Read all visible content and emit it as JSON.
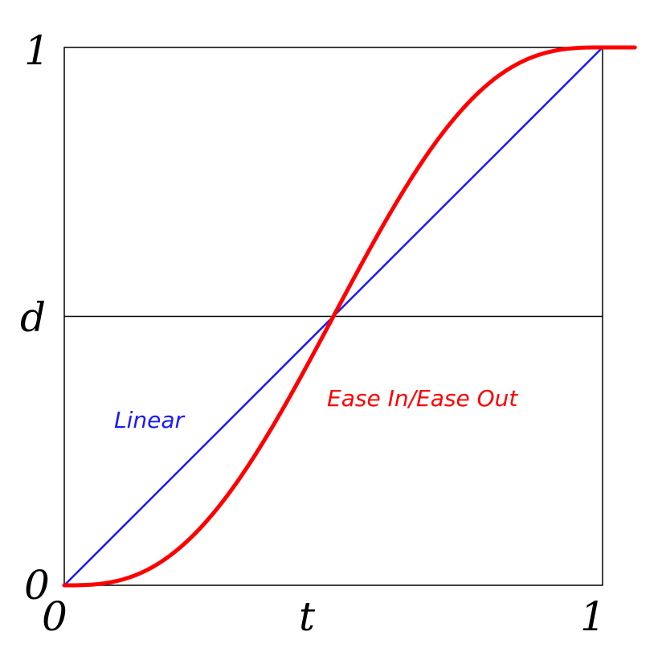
{
  "labels": {
    "y_top": "1",
    "y_mid": "d",
    "y_bottom": "0",
    "x_left": "0",
    "x_mid": "t",
    "x_right": "1",
    "linear": "Linear",
    "ease": "Ease In/Ease Out"
  },
  "colors": {
    "frame": "#000000",
    "linear": "#1a1aff",
    "ease": "#ff0000"
  },
  "chart_data": {
    "type": "line",
    "xlim": [
      0,
      1
    ],
    "ylim": [
      0,
      1
    ],
    "midline_y": 0.5,
    "series": [
      {
        "name": "Linear",
        "kind": "linear",
        "x": [
          0,
          1
        ],
        "y": [
          0,
          1
        ]
      },
      {
        "name": "Ease In/Ease Out",
        "kind": "ease-in-out",
        "x_range": [
          0,
          1.06
        ],
        "y_range": [
          0,
          1
        ]
      }
    ]
  }
}
